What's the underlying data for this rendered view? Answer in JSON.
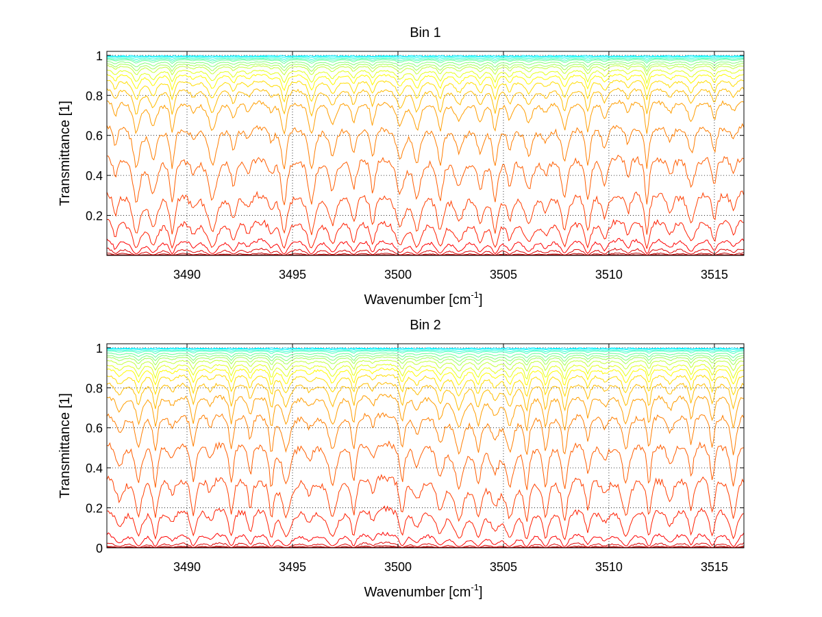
{
  "figure": {
    "background": "#ffffff",
    "colormap": "jet"
  },
  "chart_data": [
    {
      "type": "line",
      "title": "Bin 1",
      "xlabel": "Wavenumber [cm",
      "xlabel_sup": "-1",
      "xlabel_suffix": "]",
      "ylabel": "Transmittance [1]",
      "xlim": [
        3486.2,
        3516.4
      ],
      "ylim": [
        0,
        1.02
      ],
      "xticks": [
        3490,
        3495,
        3500,
        3505,
        3510,
        3515
      ],
      "yticks": [
        0.2,
        0.4,
        0.6,
        0.8,
        1
      ],
      "grid": true,
      "grid_style": "dotted",
      "series_count": 22,
      "series_baselines": [
        0.0,
        0.005,
        0.015,
        0.04,
        0.09,
        0.19,
        0.33,
        0.51,
        0.66,
        0.78,
        0.84,
        0.88,
        0.91,
        0.93,
        0.95,
        0.96,
        0.97,
        0.98,
        0.985,
        0.99,
        0.995,
        1.0
      ],
      "absorption_lines_cm-1": [
        3486.6,
        3487.6,
        3488.4,
        3489.3,
        3490.3,
        3491.2,
        3492.2,
        3492.9,
        3494.0,
        3494.6,
        3495.9,
        3496.9,
        3497.9,
        3498.8,
        3500.1,
        3500.9,
        3502.0,
        3502.9,
        3503.9,
        3504.6,
        3505.3,
        3506.2,
        3507.0,
        3507.9,
        3509.0,
        3509.8,
        3510.9,
        3511.8,
        3512.9,
        3513.9,
        3515.0,
        3515.9
      ]
    },
    {
      "type": "line",
      "title": "Bin 2",
      "xlabel": "Wavenumber [cm",
      "xlabel_sup": "-1",
      "xlabel_suffix": "]",
      "ylabel": "Transmittance [1]",
      "xlim": [
        3486.2,
        3516.4
      ],
      "ylim": [
        0,
        1.02
      ],
      "xticks": [
        3490,
        3495,
        3500,
        3505,
        3510,
        3515
      ],
      "yticks": [
        0,
        0.2,
        0.4,
        0.6,
        0.8,
        1
      ],
      "grid": true,
      "grid_style": "dotted",
      "series_count": 22,
      "series_baselines": [
        0.0,
        0.005,
        0.012,
        0.03,
        0.08,
        0.21,
        0.37,
        0.54,
        0.68,
        0.77,
        0.83,
        0.87,
        0.9,
        0.92,
        0.94,
        0.955,
        0.965,
        0.975,
        0.985,
        0.99,
        0.995,
        1.0
      ],
      "absorption_lines_cm-1": [
        3486.8,
        3487.7,
        3488.5,
        3489.3,
        3490.3,
        3491.1,
        3492.1,
        3493.0,
        3494.0,
        3494.7,
        3495.8,
        3496.9,
        3497.9,
        3498.8,
        3500.2,
        3500.9,
        3502.0,
        3502.9,
        3503.8,
        3504.6,
        3505.3,
        3506.1,
        3507.0,
        3507.9,
        3509.0,
        3509.8,
        3510.8,
        3511.9,
        3512.9,
        3513.9,
        3514.9,
        3515.9
      ]
    }
  ]
}
